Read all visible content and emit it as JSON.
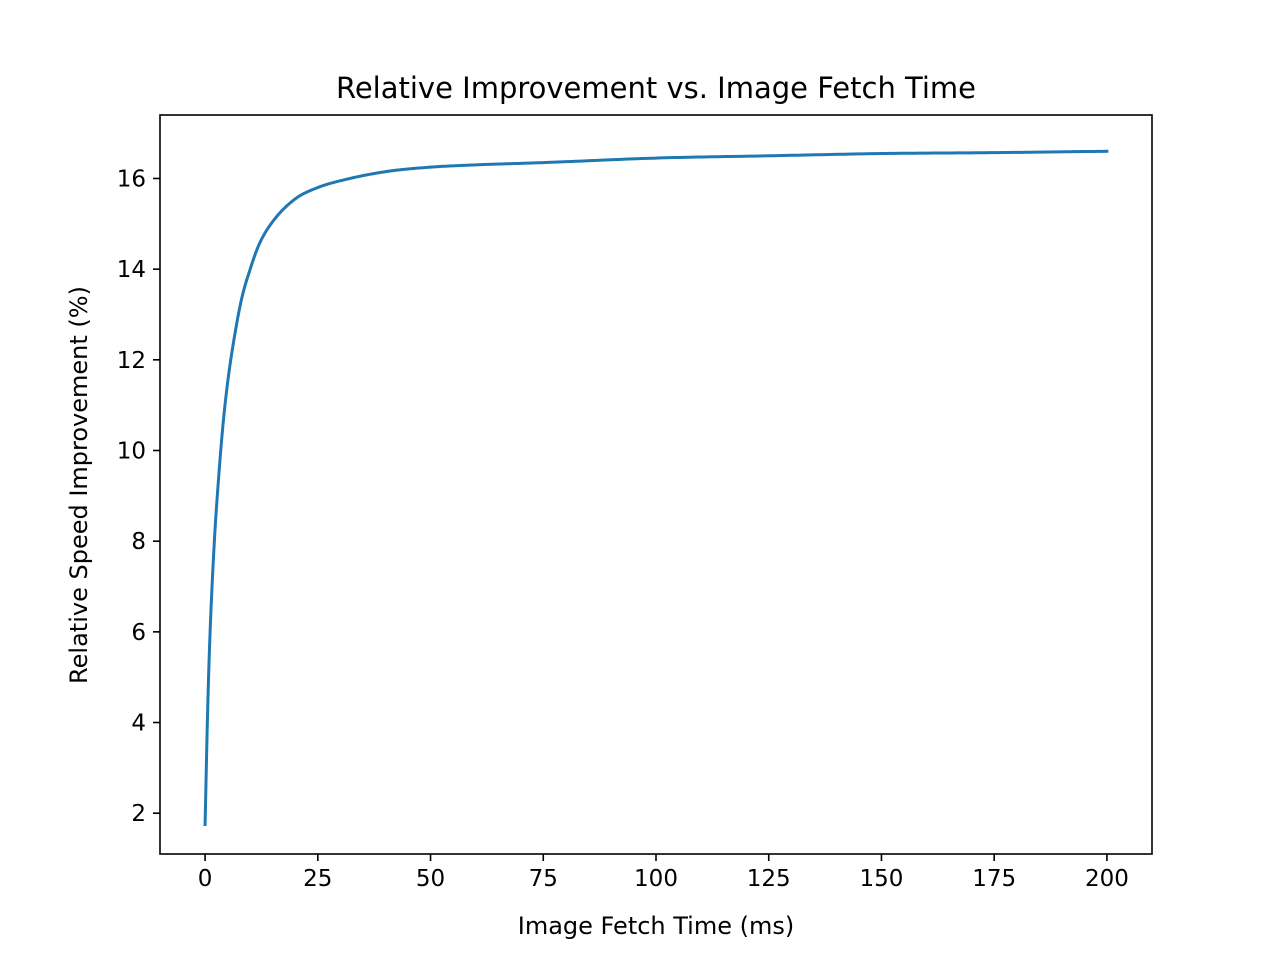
{
  "chart_data": {
    "type": "line",
    "title": "Relative Improvement vs. Image Fetch Time",
    "xlabel": "Image Fetch Time (ms)",
    "ylabel": "Relative Speed Improvement (%)",
    "xlim": [
      -10,
      210
    ],
    "ylim": [
      1.1,
      17.4
    ],
    "xticks": [
      0,
      25,
      50,
      75,
      100,
      125,
      150,
      175,
      200
    ],
    "yticks": [
      2,
      4,
      6,
      8,
      10,
      12,
      14,
      16
    ],
    "grid": false,
    "line_color": "#1f77b4",
    "series": [
      {
        "name": "",
        "x": [
          0,
          0.5,
          1,
          2,
          3,
          4,
          5,
          6,
          8,
          10,
          12,
          15,
          20,
          25,
          30,
          40,
          50,
          60,
          75,
          100,
          125,
          150,
          175,
          200
        ],
        "y": [
          1.75,
          4.0,
          5.7,
          7.9,
          9.4,
          10.6,
          11.5,
          12.2,
          13.3,
          14.0,
          14.55,
          15.05,
          15.55,
          15.8,
          15.95,
          16.15,
          16.25,
          16.3,
          16.35,
          16.45,
          16.5,
          16.55,
          16.57,
          16.6
        ]
      }
    ]
  }
}
